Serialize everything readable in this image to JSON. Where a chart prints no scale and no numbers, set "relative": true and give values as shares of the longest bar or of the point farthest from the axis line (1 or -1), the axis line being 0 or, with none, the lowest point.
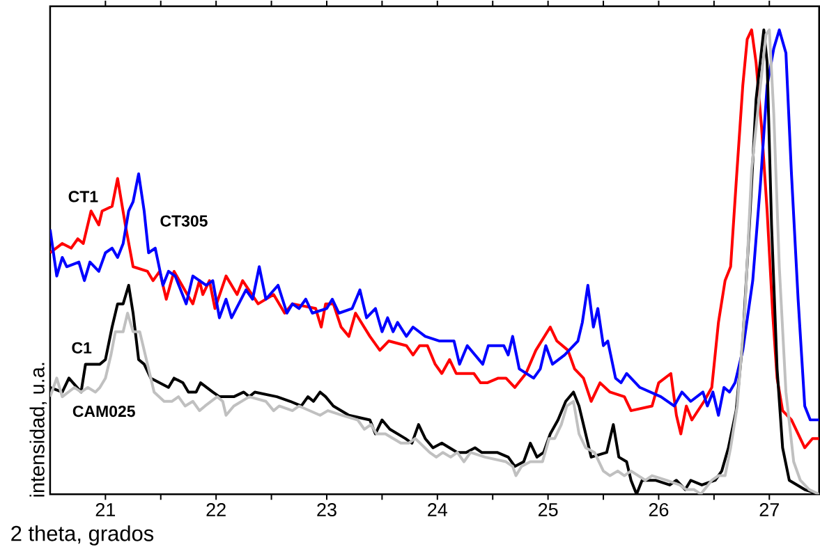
{
  "chart_data": {
    "type": "line",
    "relative": true,
    "xlabel": "2 theta, grados",
    "ylabel": "intensidad, u.a.",
    "xlim": [
      20.5,
      27.45
    ],
    "xticks": [
      21,
      {
        "value": 21.5,
        "label": null
      },
      22,
      {
        "value": 22.5,
        "label": null
      },
      23,
      {
        "value": 23.5,
        "label": null
      },
      24,
      {
        "value": 24.5,
        "label": null
      },
      25,
      {
        "value": 25.5,
        "label": null
      },
      26,
      {
        "value": 26.5,
        "label": null
      },
      27
    ],
    "marker": "none",
    "line_style": "solid",
    "series": [
      {
        "name": "CT1",
        "color": "#ff0000",
        "x": [
          20.5,
          20.61,
          20.69,
          20.75,
          20.8,
          20.87,
          20.94,
          20.97,
          21.06,
          21.11,
          21.18,
          21.25,
          21.38,
          21.43,
          21.49,
          21.55,
          21.62,
          21.74,
          21.79,
          21.85,
          21.88,
          21.94,
          21.99,
          22.09,
          22.19,
          22.24,
          22.38,
          22.52,
          22.62,
          22.69,
          22.9,
          22.95,
          22.99,
          23.06,
          23.13,
          23.2,
          23.26,
          23.39,
          23.48,
          23.56,
          23.72,
          23.78,
          23.84,
          23.91,
          23.98,
          24.04,
          24.11,
          24.17,
          24.33,
          24.39,
          24.45,
          24.55,
          24.62,
          24.7,
          24.8,
          24.89,
          25.02,
          25.08,
          25.18,
          25.24,
          25.32,
          25.39,
          25.47,
          25.56,
          25.69,
          25.75,
          25.94,
          26.0,
          26.11,
          26.16,
          26.2,
          26.25,
          26.3,
          26.41,
          26.48,
          26.54,
          26.6,
          26.65,
          26.7,
          26.76,
          26.8,
          26.84,
          26.88,
          26.93,
          26.98,
          27.03,
          27.07,
          27.12,
          27.2,
          27.28,
          27.32,
          27.39,
          27.45
        ],
        "values": [
          0.52,
          0.54,
          0.53,
          0.55,
          0.54,
          0.61,
          0.58,
          0.61,
          0.62,
          0.68,
          0.58,
          0.49,
          0.48,
          0.46,
          0.48,
          0.42,
          0.48,
          0.43,
          0.41,
          0.46,
          0.43,
          0.46,
          0.4,
          0.47,
          0.43,
          0.46,
          0.41,
          0.43,
          0.39,
          0.41,
          0.4,
          0.36,
          0.41,
          0.41,
          0.36,
          0.34,
          0.39,
          0.34,
          0.31,
          0.33,
          0.32,
          0.3,
          0.32,
          0.32,
          0.28,
          0.26,
          0.29,
          0.26,
          0.26,
          0.24,
          0.24,
          0.25,
          0.25,
          0.23,
          0.26,
          0.31,
          0.36,
          0.33,
          0.31,
          0.27,
          0.25,
          0.2,
          0.24,
          0.22,
          0.21,
          0.18,
          0.19,
          0.24,
          0.26,
          0.17,
          0.13,
          0.19,
          0.16,
          0.2,
          0.23,
          0.37,
          0.46,
          0.49,
          0.67,
          0.88,
          0.98,
          1,
          0.93,
          0.79,
          0.61,
          0.39,
          0.25,
          0.18,
          0.16,
          0.12,
          0.1,
          0.12,
          0.12
        ]
      },
      {
        "name": "CT305",
        "color": "#0000ff",
        "x": [
          20.5,
          20.56,
          20.61,
          20.65,
          20.76,
          20.81,
          20.86,
          20.94,
          21.0,
          21.06,
          21.11,
          21.16,
          21.21,
          21.25,
          21.3,
          21.35,
          21.39,
          21.45,
          21.52,
          21.57,
          21.63,
          21.73,
          21.79,
          21.91,
          21.97,
          22.03,
          22.09,
          22.14,
          22.27,
          22.33,
          22.39,
          22.45,
          22.56,
          22.64,
          22.69,
          22.75,
          22.81,
          22.87,
          23.0,
          23.05,
          23.11,
          23.23,
          23.3,
          23.36,
          23.44,
          23.5,
          23.55,
          23.6,
          23.64,
          23.72,
          23.78,
          23.89,
          24.02,
          24.15,
          24.2,
          24.27,
          24.41,
          24.46,
          24.6,
          24.64,
          24.68,
          24.74,
          24.87,
          24.93,
          24.98,
          25.04,
          25.15,
          25.27,
          25.31,
          25.36,
          25.41,
          25.45,
          25.5,
          25.54,
          25.61,
          25.66,
          25.71,
          25.83,
          26.02,
          26.14,
          26.21,
          26.29,
          26.4,
          26.44,
          26.49,
          26.54,
          26.59,
          26.64,
          26.69,
          26.76,
          26.85,
          26.92,
          26.98,
          27.04,
          27.09,
          27.15,
          27.2,
          27.26,
          27.32,
          27.37,
          27.45
        ],
        "values": [
          0.57,
          0.47,
          0.51,
          0.49,
          0.5,
          0.46,
          0.5,
          0.48,
          0.52,
          0.53,
          0.51,
          0.54,
          0.61,
          0.63,
          0.69,
          0.61,
          0.52,
          0.53,
          0.45,
          0.48,
          0.47,
          0.41,
          0.47,
          0.45,
          0.46,
          0.38,
          0.42,
          0.38,
          0.44,
          0.42,
          0.49,
          0.42,
          0.45,
          0.39,
          0.41,
          0.4,
          0.42,
          0.39,
          0.4,
          0.42,
          0.39,
          0.4,
          0.44,
          0.38,
          0.4,
          0.35,
          0.38,
          0.35,
          0.37,
          0.34,
          0.36,
          0.34,
          0.33,
          0.33,
          0.28,
          0.32,
          0.28,
          0.32,
          0.32,
          0.3,
          0.34,
          0.27,
          0.25,
          0.27,
          0.32,
          0.28,
          0.3,
          0.33,
          0.37,
          0.45,
          0.36,
          0.4,
          0.32,
          0.33,
          0.25,
          0.24,
          0.26,
          0.23,
          0.21,
          0.19,
          0.22,
          0.2,
          0.22,
          0.19,
          0.22,
          0.17,
          0.23,
          0.22,
          0.24,
          0.31,
          0.46,
          0.67,
          0.88,
          0.96,
          1,
          0.95,
          0.69,
          0.42,
          0.19,
          0.16,
          0.16
        ]
      },
      {
        "name": "C1",
        "color": "#000000",
        "x": [
          20.5,
          20.61,
          20.67,
          20.78,
          20.82,
          20.95,
          21.0,
          21.06,
          21.11,
          21.16,
          21.21,
          21.25,
          21.3,
          21.35,
          21.41,
          21.57,
          21.62,
          21.7,
          21.75,
          21.82,
          21.86,
          21.97,
          22.03,
          22.16,
          22.25,
          22.3,
          22.35,
          22.55,
          22.67,
          22.77,
          22.83,
          22.88,
          22.94,
          22.99,
          23.06,
          23.2,
          23.39,
          23.44,
          23.5,
          23.57,
          23.71,
          23.77,
          23.83,
          23.89,
          23.96,
          24.04,
          24.18,
          24.26,
          24.34,
          24.4,
          24.54,
          24.64,
          24.7,
          24.78,
          24.84,
          24.9,
          24.96,
          25.02,
          25.09,
          25.16,
          25.23,
          25.28,
          25.33,
          25.39,
          25.53,
          25.59,
          25.64,
          25.71,
          25.75,
          25.8,
          25.85,
          25.97,
          26.1,
          26.16,
          26.24,
          26.29,
          26.39,
          26.51,
          26.57,
          26.63,
          26.7,
          26.76,
          26.82,
          26.88,
          26.95,
          26.98,
          27.02,
          27.07,
          27.12,
          27.18,
          27.32,
          27.45
        ],
        "values": [
          0.23,
          0.22,
          0.25,
          0.22,
          0.28,
          0.28,
          0.29,
          0.36,
          0.41,
          0.41,
          0.45,
          0.39,
          0.29,
          0.28,
          0.25,
          0.23,
          0.25,
          0.24,
          0.22,
          0.22,
          0.24,
          0.22,
          0.21,
          0.21,
          0.22,
          0.21,
          0.22,
          0.21,
          0.2,
          0.19,
          0.21,
          0.2,
          0.22,
          0.21,
          0.19,
          0.17,
          0.16,
          0.13,
          0.16,
          0.14,
          0.12,
          0.11,
          0.15,
          0.12,
          0.1,
          0.11,
          0.09,
          0.09,
          0.1,
          0.09,
          0.09,
          0.08,
          0.06,
          0.07,
          0.11,
          0.08,
          0.09,
          0.13,
          0.16,
          0.2,
          0.22,
          0.19,
          0.14,
          0.08,
          0.09,
          0.15,
          0.08,
          0.07,
          0.03,
          0,
          0.03,
          0.03,
          0.02,
          0.03,
          0.01,
          0.03,
          0.02,
          0.03,
          0.05,
          0.1,
          0.18,
          0.33,
          0.58,
          0.85,
          1,
          0.93,
          0.58,
          0.27,
          0.1,
          0.03,
          0.01,
          0
        ]
      },
      {
        "name": "CAM025",
        "color": "#c0c0c0",
        "x": [
          20.5,
          20.56,
          20.61,
          20.72,
          20.78,
          20.84,
          20.91,
          20.95,
          21.0,
          21.05,
          21.09,
          21.16,
          21.2,
          21.25,
          21.31,
          21.38,
          21.44,
          21.53,
          21.6,
          21.66,
          21.72,
          21.79,
          21.85,
          21.9,
          22.01,
          22.06,
          22.09,
          22.16,
          22.3,
          22.45,
          22.52,
          22.57,
          22.69,
          22.75,
          22.94,
          23.01,
          23.14,
          23.28,
          23.34,
          23.4,
          23.45,
          23.53,
          23.67,
          23.74,
          23.8,
          23.93,
          23.99,
          24.05,
          24.12,
          24.18,
          24.24,
          24.3,
          24.43,
          24.62,
          24.68,
          24.71,
          24.76,
          24.84,
          24.95,
          25.01,
          25.06,
          25.12,
          25.17,
          25.23,
          25.28,
          25.34,
          25.42,
          25.5,
          25.56,
          25.63,
          25.69,
          25.75,
          25.88,
          25.94,
          26.07,
          26.19,
          26.25,
          26.32,
          26.38,
          26.48,
          26.54,
          26.6,
          26.65,
          26.71,
          26.78,
          26.84,
          26.92,
          26.97,
          27.0,
          27.04,
          27.09,
          27.15,
          27.22,
          27.28,
          27.36,
          27.45
        ],
        "values": [
          0.21,
          0.25,
          0.21,
          0.23,
          0.22,
          0.23,
          0.22,
          0.23,
          0.25,
          0.3,
          0.35,
          0.35,
          0.39,
          0.35,
          0.35,
          0.28,
          0.22,
          0.2,
          0.2,
          0.21,
          0.19,
          0.2,
          0.18,
          0.19,
          0.21,
          0.2,
          0.17,
          0.19,
          0.21,
          0.2,
          0.18,
          0.19,
          0.18,
          0.19,
          0.17,
          0.18,
          0.17,
          0.16,
          0.14,
          0.15,
          0.13,
          0.13,
          0.11,
          0.11,
          0.12,
          0.09,
          0.08,
          0.09,
          0.08,
          0.09,
          0.07,
          0.09,
          0.08,
          0.07,
          0.06,
          0.04,
          0.06,
          0.07,
          0.07,
          0.12,
          0.12,
          0.15,
          0.19,
          0.2,
          0.13,
          0.1,
          0.09,
          0.05,
          0.04,
          0.05,
          0.04,
          0.05,
          0.03,
          0.04,
          0.03,
          0.02,
          0.01,
          0.01,
          0,
          0.03,
          0.04,
          0.04,
          0.1,
          0.19,
          0.4,
          0.7,
          0.88,
          0.99,
          1,
          0.82,
          0.49,
          0.22,
          0.07,
          0.03,
          0.01,
          0
        ]
      }
    ]
  }
}
